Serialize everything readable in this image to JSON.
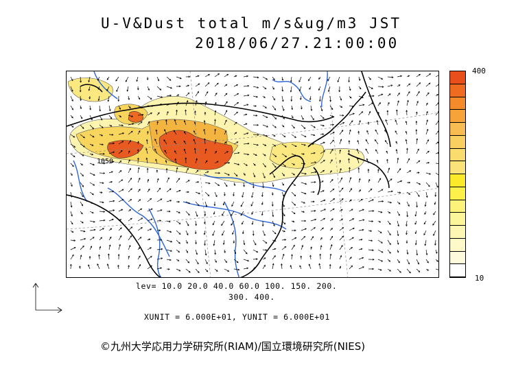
{
  "title": {
    "line1": "U-V&Dust total m/s&ug/m3 JST",
    "line2": "2018/06/27.21:00:00"
  },
  "map": {
    "contour_label": "1050",
    "dust_color_low": "#fdf4b0",
    "dust_color_mid": "#f2c24a",
    "dust_color_high": "#e85a20",
    "river_color": "#2a64d8",
    "coast_color": "#000000"
  },
  "legend": {
    "top_label": "400",
    "bottom_label": "10",
    "colors": [
      "#e84f1a",
      "#ef6b20",
      "#f48a2a",
      "#f6a43a",
      "#f8bc52",
      "#f9cf62",
      "#fadb6e",
      "#fbe37a",
      "#fcea2a",
      "#fdf04a",
      "#fdf37a",
      "#fdf59a",
      "#fef7b3",
      "#fef9c8",
      "#fefbdc",
      "#ffffff"
    ]
  },
  "lev": {
    "line1": "lev= 10.0 20.0 40.0 60.0 100. 150. 200.",
    "line2": "300. 400."
  },
  "units": "XUNIT = 6.000E+01, YUNIT = 6.000E+01",
  "credit": "©九州大学応用力学研究所(RIAM)/国立環境研究所(NIES)"
}
